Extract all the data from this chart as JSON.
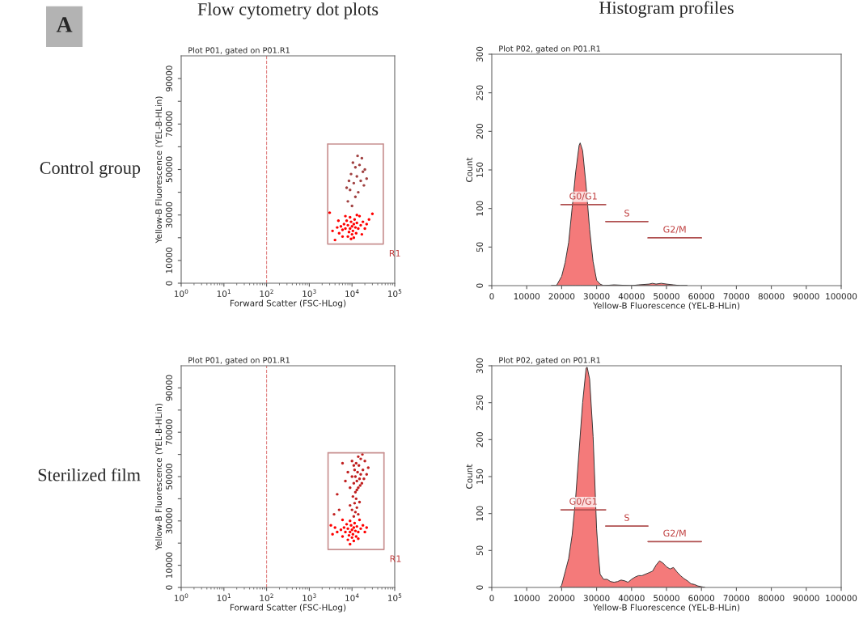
{
  "chart_data": [
    {
      "type": "scatter",
      "title": "Flow cytometry dot plots",
      "subtitle": "Plot P01, gated on P01.R1",
      "xlabel": "Forward Scatter (FSC-HLog)",
      "ylabel": "Yellow-B Fluorescence (YEL-B-HLin)",
      "annotations": [
        "A",
        "Control group"
      ],
      "log": "x",
      "xlim": [
        1,
        100000
      ],
      "ylim": [
        0,
        100000
      ],
      "xticks": [
        {
          "value": 1,
          "label": "10$^{0}$"
        },
        {
          "value": 10,
          "label": "10$^{1}$"
        },
        {
          "value": 100,
          "label": "10$^{2}$"
        },
        {
          "value": 1000,
          "label": "10$^{3}$"
        },
        {
          "value": 10000,
          "label": "10$^{4}$"
        },
        {
          "value": 100000,
          "label": "10$^{5}$"
        }
      ],
      "yticks": [
        0,
        {
          "value": 10000,
          "label": "10000"
        },
        {
          "value": 20000,
          "label": null
        },
        30000,
        {
          "value": 40000,
          "label": null
        },
        50000,
        {
          "value": 60000,
          "label": null
        },
        70000,
        {
          "value": 80000,
          "label": null
        },
        90000
      ],
      "ref_lines": [
        {
          "axis": "x",
          "value": 100,
          "color": "#e08080",
          "line_style": "dashed"
        }
      ],
      "series": [
        {
          "color": "#ff0000",
          "x": [
            10000,
            9000,
            11000,
            8000,
            12000,
            9500,
            10500,
            7000,
            13000,
            8500,
            11500,
            6500,
            14000,
            9000,
            10000,
            7500,
            12500,
            16000,
            6000,
            5500,
            18000,
            5000,
            20000,
            15000,
            8000,
            11000,
            4500,
            22000,
            7000,
            13000,
            25000,
            4800,
            9500,
            17000,
            6000,
            30000,
            3500,
            3000,
            4000
          ],
          "values": [
            25000,
            24000,
            26000,
            25500,
            24500,
            27000,
            23000,
            24000,
            26500,
            22500,
            28000,
            26000,
            24000,
            29000,
            21500,
            27500,
            22000,
            25500,
            23500,
            25000,
            27000,
            22000,
            24000,
            29500,
            20500,
            20000,
            24500,
            26000,
            29500,
            30000,
            28000,
            27500,
            19500,
            21500,
            20500,
            30500,
            23000,
            31000,
            19000
          ]
        },
        {
          "color": "#a04040",
          "x": [
            8000,
            10000,
            12000,
            9000,
            14000,
            11000,
            16000,
            13000,
            9500,
            18000,
            12000,
            15000,
            10500,
            20000,
            17000,
            8500,
            22000,
            13500,
            7500,
            19000
          ],
          "values": [
            36000,
            34000,
            38000,
            41000,
            40000,
            44000,
            45000,
            47000,
            48000,
            49000,
            51000,
            52000,
            53000,
            50000,
            55000,
            45000,
            46000,
            56000,
            42000,
            43000
          ]
        },
        {
          "type": "line",
          "name": "R1",
          "color": "#c89090",
          "x": [
            2700,
            2700,
            54000,
            54000
          ],
          "values": [
            61200,
            17200,
            17200,
            61200
          ]
        },
        {
          "type": "line",
          "color": "#c89090",
          "x": [
            2700,
            54000
          ],
          "values": [
            61200,
            61200
          ]
        }
      ]
    },
    {
      "type": "area",
      "title": "Histogram profiles",
      "subtitle": "Plot P02, gated on P01.R1",
      "xlabel": "Yellow-B Fluorescence (YEL-B-HLin)",
      "ylabel": "Count",
      "xlim": [
        0,
        100000
      ],
      "ylim": [
        0,
        300
      ],
      "xticks": [
        0,
        10000,
        20000,
        30000,
        40000,
        50000,
        60000,
        70000,
        80000,
        90000,
        100000
      ],
      "yticks": [
        0,
        50,
        100,
        150,
        200,
        250,
        300
      ],
      "series": [
        {
          "color": "#f47a7a",
          "x": [
            17000,
            18500,
            20000,
            21000,
            22000,
            23000,
            24000,
            25000,
            25300,
            26000,
            27000,
            28000,
            29000,
            30000,
            31000,
            32000,
            35000,
            40000,
            42000,
            45000,
            46000,
            47000,
            48500,
            50000,
            52000,
            54000,
            56000
          ],
          "values": [
            0,
            0,
            12,
            30,
            56,
            101,
            147,
            182,
            185,
            175,
            129,
            73,
            31,
            7,
            2,
            0,
            1,
            0,
            1,
            2,
            3,
            2,
            3,
            2,
            1,
            0,
            0
          ]
        },
        {
          "type": "line",
          "name": "G0/G1",
          "color": "#b05050",
          "x": [
            19800,
            32600
          ],
          "values": [
            105,
            105
          ]
        },
        {
          "type": "line",
          "name": "S",
          "color": "#b05050",
          "x": [
            32600,
            44700
          ],
          "values": [
            83,
            83
          ]
        },
        {
          "type": "line",
          "name": "G2/M",
          "color": "#b05050",
          "x": [
            44700,
            60000
          ],
          "values": [
            62,
            62
          ]
        }
      ]
    },
    {
      "type": "scatter",
      "subtitle": "Plot P01, gated on P01.R1",
      "xlabel": "Forward Scatter (FSC-HLog)",
      "ylabel": "Yellow-B Fluorescence (YEL-B-HLin)",
      "annotations": [
        "Sterilized film"
      ],
      "log": "x",
      "xlim": [
        1,
        100000
      ],
      "ylim": [
        0,
        100000
      ],
      "xticks": [
        {
          "value": 1,
          "label": "10$^{0}$"
        },
        {
          "value": 10,
          "label": "10$^{1}$"
        },
        {
          "value": 100,
          "label": "10$^{2}$"
        },
        {
          "value": 1000,
          "label": "10$^{3}$"
        },
        {
          "value": 10000,
          "label": "10$^{4}$"
        },
        {
          "value": 100000,
          "label": "10$^{5}$"
        }
      ],
      "yticks": [
        0,
        {
          "value": 10000,
          "label": "10000"
        },
        {
          "value": 20000,
          "label": null
        },
        30000,
        {
          "value": 40000,
          "label": null
        },
        50000,
        {
          "value": 60000,
          "label": null
        },
        70000,
        {
          "value": 80000,
          "label": null
        },
        90000
      ],
      "ref_lines": [
        {
          "axis": "x",
          "value": 100,
          "color": "#e08080",
          "line_style": "dashed"
        }
      ],
      "series": [
        {
          "color": "#ff0000",
          "x": [
            10000,
            9000,
            11000,
            8000,
            12000,
            9500,
            10500,
            7000,
            13000,
            8500,
            11500,
            6500,
            14000,
            9000,
            10000,
            7500,
            12500,
            16000,
            5500,
            4500,
            18000,
            4000,
            20000,
            15000,
            8000,
            11000,
            22000,
            6000,
            3500,
            3200,
            6000,
            14000,
            9000
          ],
          "values": [
            26000,
            25000,
            27000,
            26500,
            25500,
            28000,
            24000,
            25000,
            27500,
            23500,
            29000,
            27000,
            25000,
            30000,
            22500,
            28500,
            23000,
            26500,
            26000,
            25000,
            28000,
            27000,
            25000,
            30500,
            21500,
            21000,
            27000,
            23000,
            24000,
            28000,
            30500,
            22000,
            19500
          ]
        },
        {
          "color": "#c02020",
          "x": [
            11000,
            12000,
            10000,
            13000,
            11500,
            12500,
            14000,
            9000,
            10500,
            15000,
            12000,
            14000,
            11000,
            13000,
            15000,
            12000,
            16000,
            13500,
            11500,
            17000,
            14500,
            10000,
            18000,
            12500,
            16000,
            9000,
            20000,
            13000,
            15500,
            11000,
            19000,
            8000,
            14000,
            22000,
            10000,
            7000,
            17500,
            24000,
            5000,
            4500,
            6000,
            3800
          ],
          "values": [
            32000,
            34000,
            35000,
            36000,
            38000,
            40000,
            33000,
            37000,
            41000,
            38500,
            43000,
            45000,
            47000,
            48000,
            49000,
            50000,
            51000,
            52000,
            53000,
            47000,
            55000,
            50000,
            53000,
            56000,
            58000,
            45000,
            57000,
            44000,
            46000,
            55000,
            49000,
            52000,
            59000,
            51000,
            57000,
            48000,
            60000,
            54000,
            35000,
            42000,
            56000,
            33000
          ]
        },
        {
          "type": "line",
          "name": "R1",
          "color": "#c89090",
          "x": [
            2750,
            2750,
            56000,
            56000
          ],
          "values": [
            60700,
            17100,
            17100,
            60700
          ]
        },
        {
          "type": "line",
          "color": "#c89090",
          "x": [
            2750,
            56000
          ],
          "values": [
            60700,
            60700
          ]
        }
      ]
    },
    {
      "type": "area",
      "subtitle": "Plot P02, gated on P01.R1",
      "xlabel": "Yellow-B Fluorescence (YEL-B-HLin)",
      "ylabel": "Count",
      "xlim": [
        0,
        100000
      ],
      "ylim": [
        0,
        300
      ],
      "xticks": [
        0,
        10000,
        20000,
        30000,
        40000,
        50000,
        60000,
        70000,
        80000,
        90000,
        100000
      ],
      "yticks": [
        0,
        50,
        100,
        150,
        200,
        250,
        300
      ],
      "series": [
        {
          "color": "#f47a7a",
          "x": [
            19500,
            20000,
            21000,
            22000,
            23000,
            24000,
            25000,
            26000,
            27000,
            27300,
            28000,
            29000,
            30000,
            30500,
            31000,
            32000,
            33000,
            34000,
            35000,
            36000,
            37000,
            38000,
            39000,
            40000,
            41000,
            42000,
            43000,
            44000,
            45000,
            46000,
            47000,
            48000,
            49000,
            50000,
            51000,
            52000,
            53000,
            54000,
            55000,
            56000,
            57000,
            58000,
            59000,
            60000,
            61000
          ],
          "values": [
            0,
            3,
            21,
            39,
            71,
            121,
            186,
            250,
            297,
            298,
            282,
            204,
            79,
            45,
            18,
            11,
            11,
            8,
            7,
            8,
            10,
            9,
            7,
            11,
            14,
            16,
            16,
            18,
            20,
            22,
            30,
            36,
            33,
            28,
            25,
            27,
            21,
            16,
            12,
            9,
            5,
            4,
            2,
            1,
            0
          ]
        },
        {
          "type": "line",
          "name": "G0/G1",
          "color": "#b05050",
          "x": [
            19800,
            32600
          ],
          "values": [
            105,
            105
          ]
        },
        {
          "type": "line",
          "name": "S",
          "color": "#b05050",
          "x": [
            32600,
            44700
          ],
          "values": [
            83,
            83
          ]
        },
        {
          "type": "line",
          "name": "G2/M",
          "color": "#b05050",
          "x": [
            44700,
            60000
          ],
          "values": [
            62,
            62
          ]
        }
      ]
    }
  ]
}
